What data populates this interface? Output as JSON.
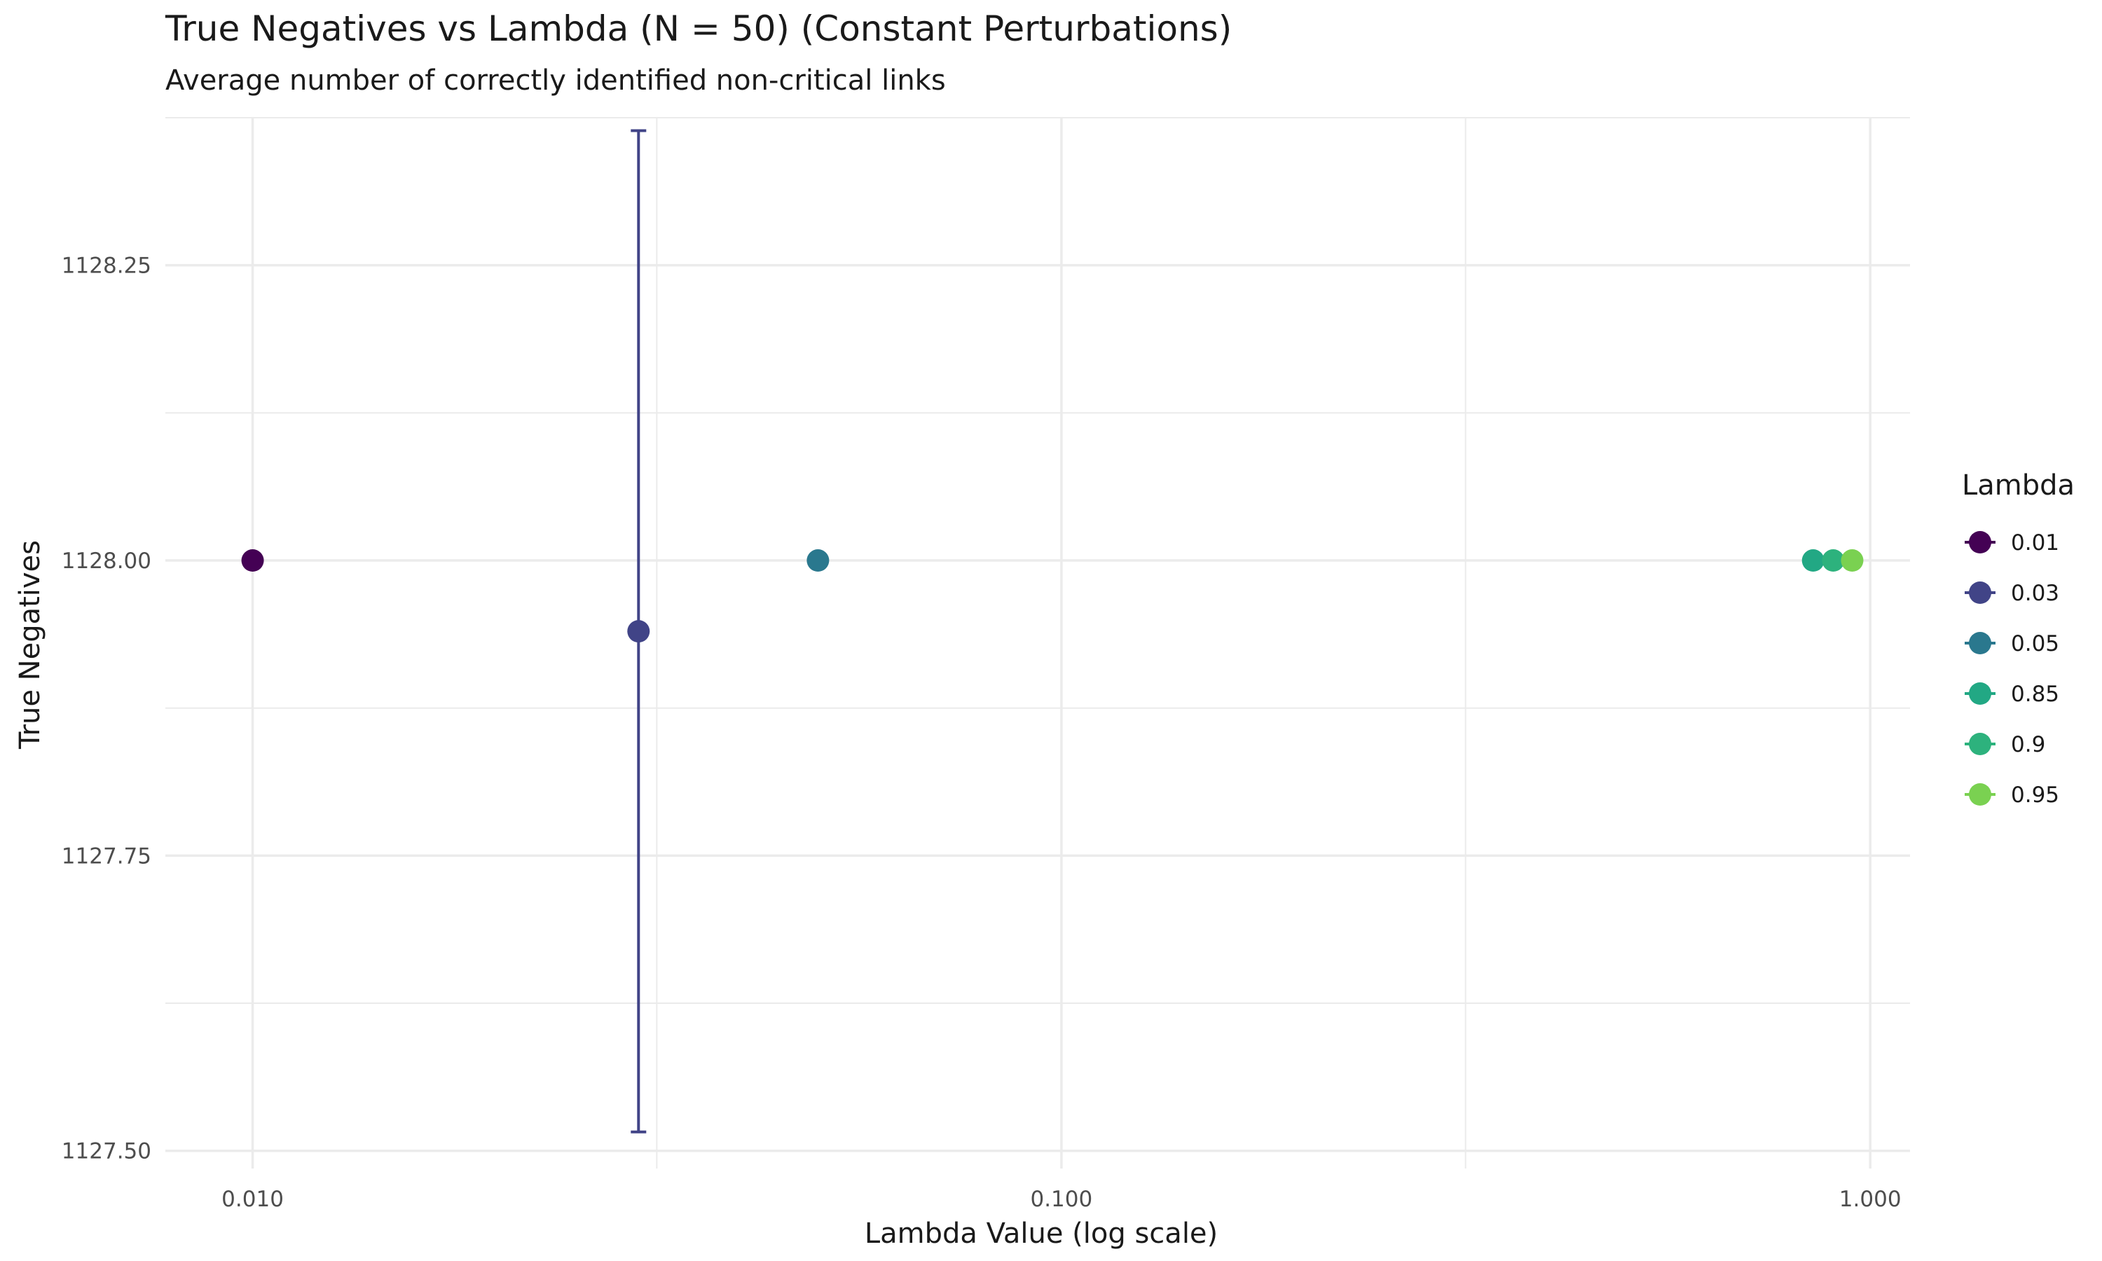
{
  "chart_data": {
    "type": "scatter",
    "title": "True Negatives vs Lambda (N = 50) (Constant Perturbations)",
    "subtitle": "Average number of correctly identified non-critical links",
    "xlabel": "Lambda Value (log scale)",
    "ylabel": "True Negatives",
    "x_scale": "log10",
    "xlim": [
      0.0078,
      1.12
    ],
    "ylim": [
      1127.485,
      1128.375
    ],
    "x_ticks": [
      0.01,
      0.1,
      1.0
    ],
    "x_tick_labels": [
      "0.010",
      "0.100",
      "1.000"
    ],
    "x_minor_ticks": [
      0.0316,
      0.316
    ],
    "y_ticks": [
      1127.5,
      1127.75,
      1128.0,
      1128.25
    ],
    "y_tick_labels": [
      "1127.50",
      "1127.75",
      "1128.00",
      "1128.25"
    ],
    "y_minor_ticks": [
      1127.625,
      1127.875,
      1128.125,
      1128.375
    ],
    "grid": true,
    "legend": {
      "title": "Lambda",
      "position": "right"
    },
    "points": [
      {
        "label": "0.01",
        "x": 0.01,
        "y": 1128.0,
        "color": "#440154"
      },
      {
        "label": "0.03",
        "x": 0.03,
        "y": 1127.94,
        "ymin": 1127.516,
        "ymax": 1128.364,
        "color": "#414487"
      },
      {
        "label": "0.05",
        "x": 0.05,
        "y": 1128.0,
        "color": "#2A788E"
      },
      {
        "label": "0.85",
        "x": 0.85,
        "y": 1128.0,
        "color": "#22A884"
      },
      {
        "label": "0.9",
        "x": 0.9,
        "y": 1128.0,
        "color": "#2DB27D"
      },
      {
        "label": "0.95",
        "x": 0.95,
        "y": 1128.0,
        "color": "#7AD151"
      }
    ]
  }
}
